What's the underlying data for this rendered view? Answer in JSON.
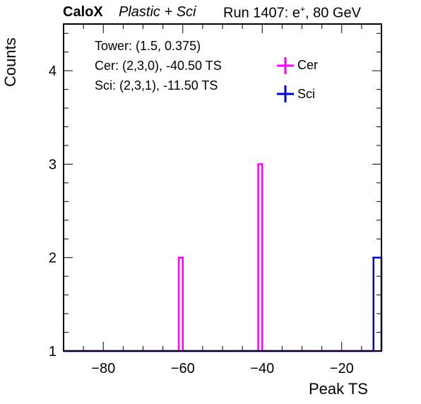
{
  "header": {
    "experiment": "CaloX",
    "config": "Plastic + Sci",
    "run_prefix": "Run 1407: e",
    "run_sup": "+",
    "run_suffix": ", 80 GeV"
  },
  "info": {
    "tower": "Tower: (1.5, 0.375)",
    "cer": "Cer: (2,3,0), -40.50 TS",
    "sci": "Sci: (2,3,1), -11.50 TS"
  },
  "colors": {
    "cer": "#ff00ff",
    "sci": "#0000cc",
    "axis": "#000000"
  },
  "chart_data": {
    "type": "histogram",
    "xlabel": "Peak TS",
    "ylabel": "Counts",
    "xlim": [
      -90,
      -10
    ],
    "ylim": [
      1,
      4.5
    ],
    "x_ticks": [
      -80,
      -60,
      -40,
      -20
    ],
    "x_tick_labels": [
      "−80",
      "−60",
      "−40",
      "−20"
    ],
    "y_ticks": [
      1,
      2,
      3,
      4
    ],
    "y_tick_labels": [
      "1",
      "2",
      "3",
      "4"
    ],
    "legend_position": "top-right",
    "series": [
      {
        "name": "Cer",
        "color": "#ff00ff",
        "bins": [
          {
            "x0": -61,
            "x1": -60,
            "value": 2
          },
          {
            "x0": -41,
            "x1": -40,
            "value": 3
          }
        ],
        "baseline": 1
      },
      {
        "name": "Sci",
        "color": "#0000cc",
        "bins": [
          {
            "x0": -12,
            "x1": -10,
            "value": 2
          }
        ],
        "baseline": 1
      }
    ]
  }
}
